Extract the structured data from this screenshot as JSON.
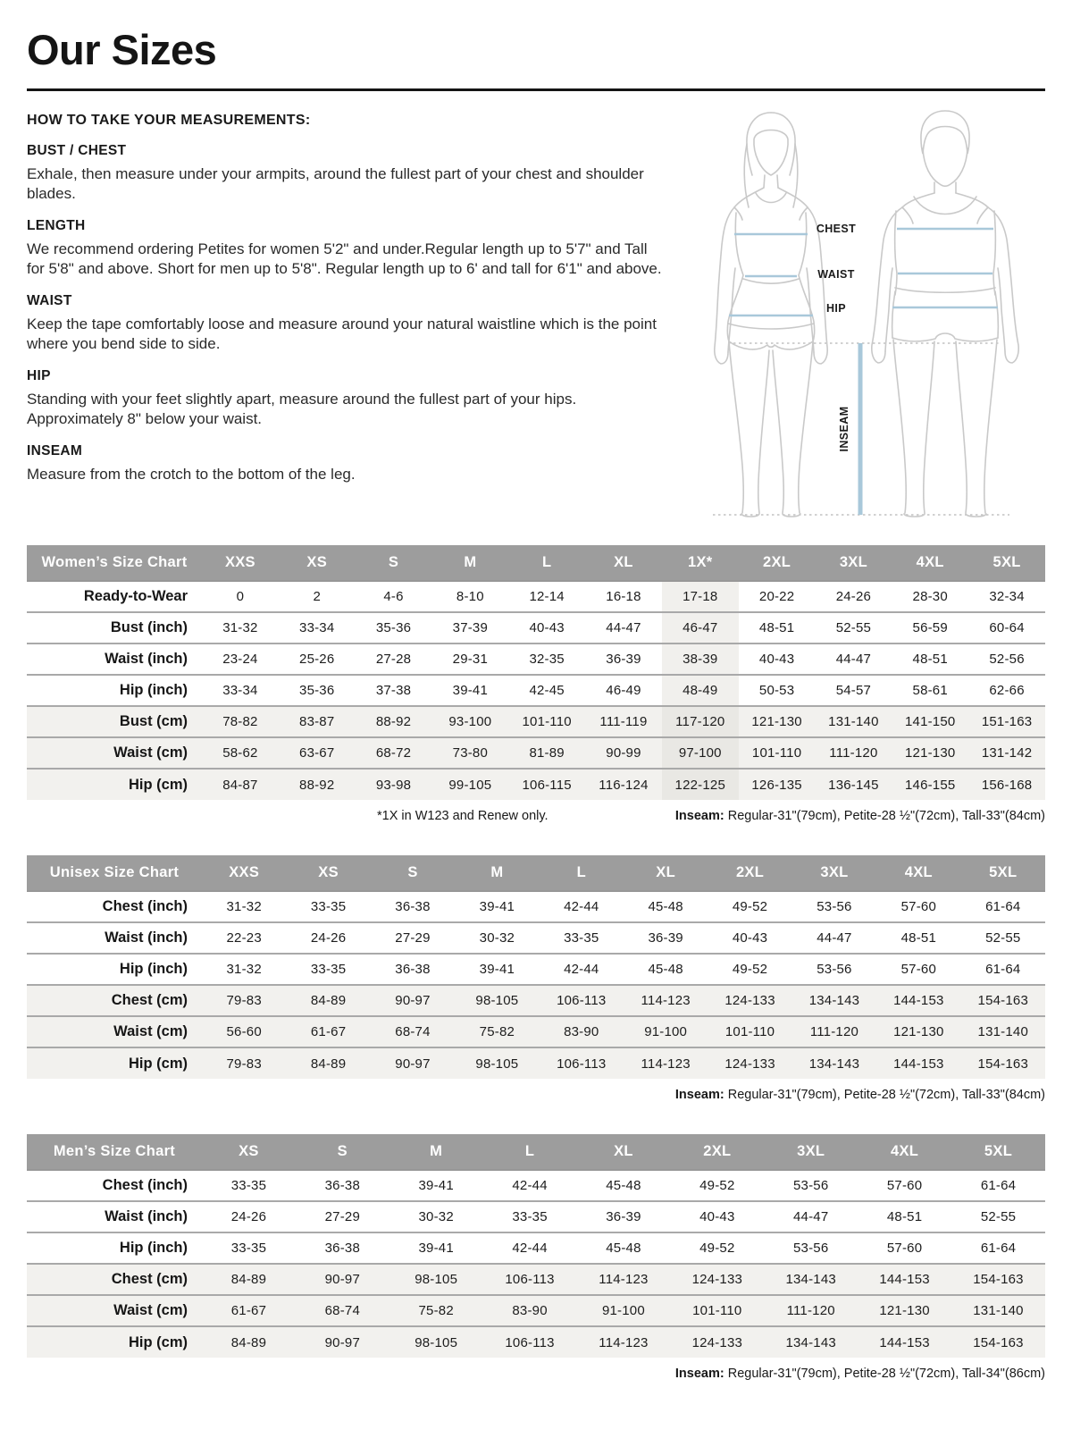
{
  "header": {
    "title": "Our Sizes"
  },
  "instructions": {
    "heading": "HOW TO TAKE YOUR MEASUREMENTS:",
    "sections": [
      {
        "heading": "BUST / CHEST",
        "body": "Exhale, then measure under your armpits, around the fullest part of your chest and shoulder blades."
      },
      {
        "heading": "LENGTH",
        "body": "We recommend ordering Petites for women 5'2\" and under.Regular length up to 5'7\" and Tall for 5'8\" and above. Short for men up to 5'8\". Regular length up to 6' and tall for 6'1\" and above."
      },
      {
        "heading": "WAIST",
        "body": "Keep the tape comfortably loose and measure around your natural waistline which is the point where you bend side to side."
      },
      {
        "heading": "HIP",
        "body": "Standing with your feet slightly apart, measure around the fullest part of your hips. Approximately 8\" below your waist."
      },
      {
        "heading": "INSEAM",
        "body": "Measure from the crotch to the bottom of the leg."
      }
    ]
  },
  "diagram": {
    "chest_label": "CHEST",
    "waist_label": "WAIST",
    "hip_label": "HIP",
    "inseam_label": "INSEAM"
  },
  "colors": {
    "header_gray": "#9d9d9d",
    "row_shade": "#f2f1ee",
    "highlight_shade": "#e9e8e4",
    "measure_blue": "#a9c8da",
    "outline_gray": "#c9c9c9"
  },
  "tables": [
    {
      "id": "womens",
      "name": "Women’s Size Chart",
      "columns": [
        "XXS",
        "XS",
        "S",
        "M",
        "L",
        "XL",
        "1X*",
        "2XL",
        "3XL",
        "4XL",
        "5XL"
      ],
      "highlight_column": 6,
      "rows": [
        {
          "label": "Ready-to-Wear",
          "shaded": false,
          "values": [
            "0",
            "2",
            "4-6",
            "8-10",
            "12-14",
            "16-18",
            "17-18",
            "20-22",
            "24-26",
            "28-30",
            "32-34"
          ]
        },
        {
          "label": "Bust (inch)",
          "shaded": false,
          "values": [
            "31-32",
            "33-34",
            "35-36",
            "37-39",
            "40-43",
            "44-47",
            "46-47",
            "48-51",
            "52-55",
            "56-59",
            "60-64"
          ]
        },
        {
          "label": "Waist (inch)",
          "shaded": false,
          "values": [
            "23-24",
            "25-26",
            "27-28",
            "29-31",
            "32-35",
            "36-39",
            "38-39",
            "40-43",
            "44-47",
            "48-51",
            "52-56"
          ]
        },
        {
          "label": "Hip (inch)",
          "shaded": false,
          "values": [
            "33-34",
            "35-36",
            "37-38",
            "39-41",
            "42-45",
            "46-49",
            "48-49",
            "50-53",
            "54-57",
            "58-61",
            "62-66"
          ]
        },
        {
          "label": "Bust (cm)",
          "shaded": true,
          "values": [
            "78-82",
            "83-87",
            "88-92",
            "93-100",
            "101-110",
            "111-119",
            "117-120",
            "121-130",
            "131-140",
            "141-150",
            "151-163"
          ]
        },
        {
          "label": "Waist (cm)",
          "shaded": true,
          "values": [
            "58-62",
            "63-67",
            "68-72",
            "73-80",
            "81-89",
            "90-99",
            "97-100",
            "101-110",
            "111-120",
            "121-130",
            "131-142"
          ]
        },
        {
          "label": "Hip (cm)",
          "shaded": true,
          "values": [
            "84-87",
            "88-92",
            "93-98",
            "99-105",
            "106-115",
            "116-124",
            "122-125",
            "126-135",
            "136-145",
            "146-155",
            "156-168"
          ]
        }
      ],
      "footnote_left": "*1X in W123 and Renew only.",
      "footnote_label": "Inseam:",
      "footnote_text": " Regular-31\"(79cm), Petite-28 ½\"(72cm), Tall-33\"(84cm)"
    },
    {
      "id": "unisex",
      "name": "Unisex Size Chart",
      "columns": [
        "XXS",
        "XS",
        "S",
        "M",
        "L",
        "XL",
        "2XL",
        "3XL",
        "4XL",
        "5XL"
      ],
      "highlight_column": -1,
      "rows": [
        {
          "label": "Chest (inch)",
          "shaded": false,
          "values": [
            "31-32",
            "33-35",
            "36-38",
            "39-41",
            "42-44",
            "45-48",
            "49-52",
            "53-56",
            "57-60",
            "61-64"
          ]
        },
        {
          "label": "Waist (inch)",
          "shaded": false,
          "values": [
            "22-23",
            "24-26",
            "27-29",
            "30-32",
            "33-35",
            "36-39",
            "40-43",
            "44-47",
            "48-51",
            "52-55"
          ]
        },
        {
          "label": "Hip (inch)",
          "shaded": false,
          "values": [
            "31-32",
            "33-35",
            "36-38",
            "39-41",
            "42-44",
            "45-48",
            "49-52",
            "53-56",
            "57-60",
            "61-64"
          ]
        },
        {
          "label": "Chest (cm)",
          "shaded": true,
          "values": [
            "79-83",
            "84-89",
            "90-97",
            "98-105",
            "106-113",
            "114-123",
            "124-133",
            "134-143",
            "144-153",
            "154-163"
          ]
        },
        {
          "label": "Waist (cm)",
          "shaded": true,
          "values": [
            "56-60",
            "61-67",
            "68-74",
            "75-82",
            "83-90",
            "91-100",
            "101-110",
            "111-120",
            "121-130",
            "131-140"
          ]
        },
        {
          "label": "Hip (cm)",
          "shaded": true,
          "values": [
            "79-83",
            "84-89",
            "90-97",
            "98-105",
            "106-113",
            "114-123",
            "124-133",
            "134-143",
            "144-153",
            "154-163"
          ]
        }
      ],
      "footnote_left": "",
      "footnote_label": "Inseam:",
      "footnote_text": " Regular-31\"(79cm), Petite-28 ½\"(72cm), Tall-33\"(84cm)"
    },
    {
      "id": "mens",
      "name": "Men’s Size Chart",
      "columns": [
        "XS",
        "S",
        "M",
        "L",
        "XL",
        "2XL",
        "3XL",
        "4XL",
        "5XL"
      ],
      "highlight_column": -1,
      "rows": [
        {
          "label": "Chest (inch)",
          "shaded": false,
          "values": [
            "33-35",
            "36-38",
            "39-41",
            "42-44",
            "45-48",
            "49-52",
            "53-56",
            "57-60",
            "61-64"
          ]
        },
        {
          "label": "Waist (inch)",
          "shaded": false,
          "values": [
            "24-26",
            "27-29",
            "30-32",
            "33-35",
            "36-39",
            "40-43",
            "44-47",
            "48-51",
            "52-55"
          ]
        },
        {
          "label": "Hip (inch)",
          "shaded": false,
          "values": [
            "33-35",
            "36-38",
            "39-41",
            "42-44",
            "45-48",
            "49-52",
            "53-56",
            "57-60",
            "61-64"
          ]
        },
        {
          "label": "Chest (cm)",
          "shaded": true,
          "values": [
            "84-89",
            "90-97",
            "98-105",
            "106-113",
            "114-123",
            "124-133",
            "134-143",
            "144-153",
            "154-163"
          ]
        },
        {
          "label": "Waist (cm)",
          "shaded": true,
          "values": [
            "61-67",
            "68-74",
            "75-82",
            "83-90",
            "91-100",
            "101-110",
            "111-120",
            "121-130",
            "131-140"
          ]
        },
        {
          "label": "Hip (cm)",
          "shaded": true,
          "values": [
            "84-89",
            "90-97",
            "98-105",
            "106-113",
            "114-123",
            "124-133",
            "134-143",
            "144-153",
            "154-163"
          ]
        }
      ],
      "footnote_left": "",
      "footnote_label": "Inseam:",
      "footnote_text": " Regular-31\"(79cm), Petite-28 ½\"(72cm), Tall-34\"(86cm)"
    }
  ]
}
